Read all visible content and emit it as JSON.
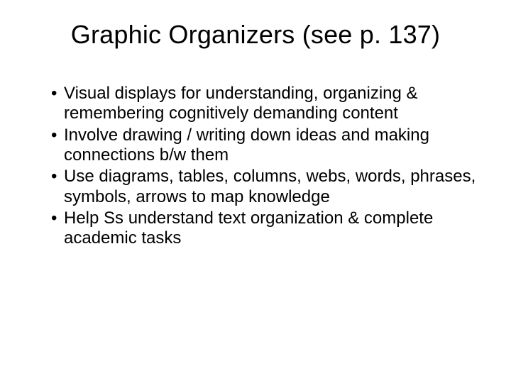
{
  "slide": {
    "title": "Graphic Organizers (see p. 137)",
    "title_fontsize": 36,
    "title_color": "#000000",
    "title_margin_top": 8,
    "bullets": [
      "Visual displays for understanding, organizing & remembering cognitively demanding content",
      "Involve drawing / writing down ideas and making connections b/w them",
      "Use diagrams, tables, columns, webs, words, phrases, symbols, arrows to map knowledge",
      "Help Ss understand text organization & complete academic tasks"
    ],
    "bullet_fontsize": 24,
    "bullet_line_height": 1.18,
    "bullet_color": "#000000",
    "bullets_top_gap": 48,
    "bullets_left_indent": 28,
    "background_color": "#ffffff"
  }
}
